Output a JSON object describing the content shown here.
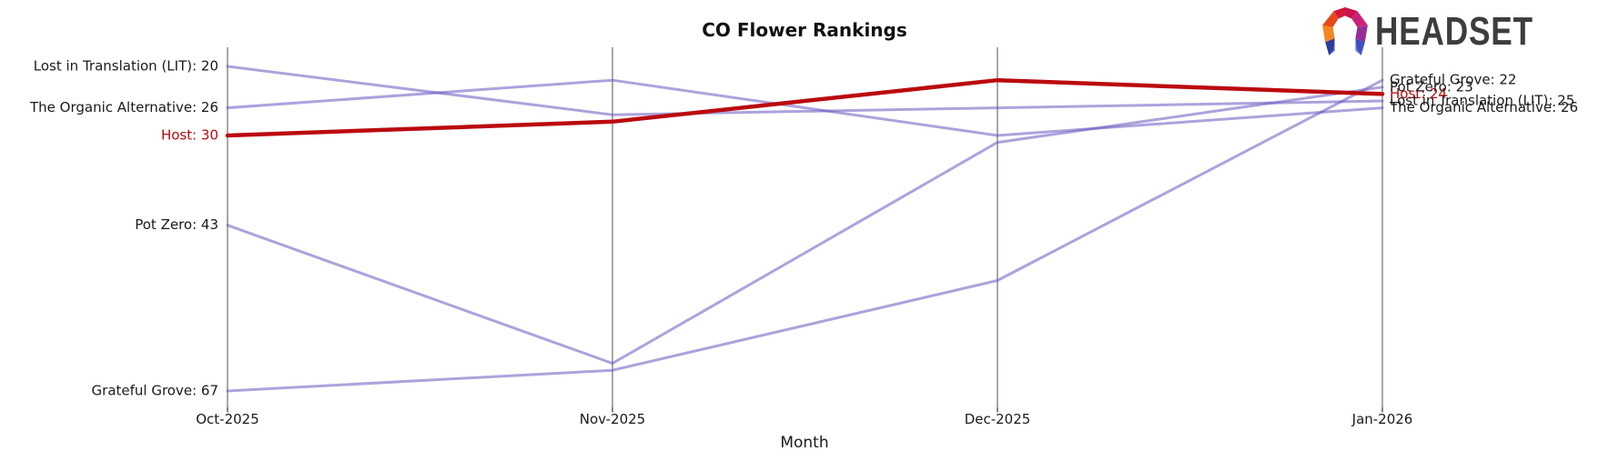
{
  "header": {
    "title": "CO Flower Rankings",
    "logo_text": "HEADSET",
    "logo_icon": "headset-faceted-ring-logo"
  },
  "chart_data": {
    "type": "line",
    "subtype": "bump-ranking-chart",
    "title": "CO Flower Rankings",
    "xlabel": "Month",
    "ylabel": "",
    "categories": [
      "Oct-2025",
      "Nov-2025",
      "Dec-2025",
      "Jan-2026"
    ],
    "y_axis": {
      "inverted": true,
      "meaning": "sales rank (lower number = higher position)",
      "approx_visible_range": [
        17,
        70
      ]
    },
    "legend": "none (lines labeled at start and end points)",
    "grid": "vertical month axes only",
    "series": [
      {
        "name": "Lost in Translation (LIT)",
        "values": [
          20,
          27,
          26,
          25
        ],
        "start_label": "Lost in Translation (LIT): 20",
        "end_label": "Lost in Translation (LIT): 25",
        "emphasis": false
      },
      {
        "name": "The Organic Alternative",
        "values": [
          26,
          22,
          30,
          26
        ],
        "start_label": "The Organic Alternative: 26",
        "end_label": "The Organic Alternative: 26",
        "emphasis": false
      },
      {
        "name": "Host",
        "values": [
          30,
          28,
          22,
          24
        ],
        "start_label": "Host: 30",
        "end_label": "Host: 24",
        "emphasis": true
      },
      {
        "name": "Pot Zero",
        "values": [
          43,
          63,
          31,
          23
        ],
        "start_label": "Pot Zero: 43",
        "end_label": "Pot Zero: 23",
        "emphasis": false
      },
      {
        "name": "Grateful Grove",
        "values": [
          67,
          64,
          51,
          22
        ],
        "start_label": "Grateful Grove: 67",
        "end_label": "Grateful Grove: 22",
        "emphasis": false
      }
    ],
    "colors": {
      "line_purple": "#6a55c0",
      "line_purple_opacity": 0.55,
      "highlight_red": "#bb0a0e",
      "axis_gray": "#a8a8a8",
      "tick_gray": "#333333",
      "label_text": "#1a1a1a",
      "title_text": "#111111",
      "logo_text": "#3d3d3d"
    }
  }
}
